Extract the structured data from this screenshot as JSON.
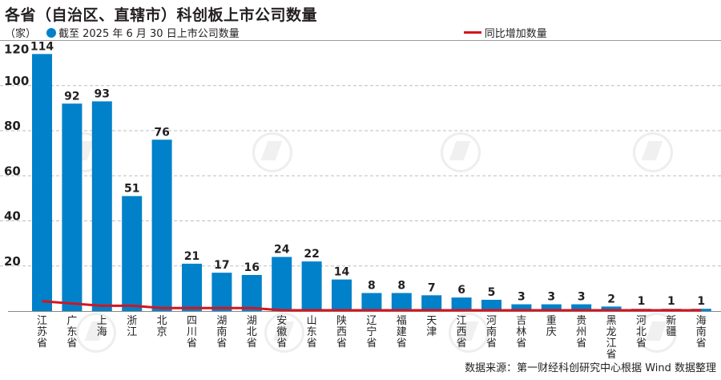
{
  "title": "各省（自治区、直辖市）科创板上市公司数量",
  "unit": "（家）",
  "legend": {
    "bar_label": "截至 2025 年 6 月 30 日上市公司数量",
    "line_label": "同比增加数量"
  },
  "source": "数据来源：第一财经科创研究中心根据 Wind 数据整理",
  "colors": {
    "bar": "#0081c9",
    "line": "#d6131f",
    "grid": "#bdbdbd"
  },
  "chart_data": {
    "type": "bar",
    "title": "各省（自治区、直辖市）科创板上市公司数量",
    "xlabel": "",
    "ylabel": "（家）",
    "ylim": [
      0,
      120
    ],
    "yticks": [
      20,
      40,
      60,
      80,
      100,
      120
    ],
    "grid": true,
    "legend_position": "top",
    "categories": [
      "江苏省",
      "广东省",
      "上海",
      "浙江",
      "北京",
      "四川省",
      "湖南省",
      "湖北省",
      "安徽省",
      "山东省",
      "陕西省",
      "辽宁省",
      "福建省",
      "天津",
      "江西省",
      "河南省",
      "吉林省",
      "重庆",
      "贵州省",
      "黑龙江省",
      "河北省",
      "新疆",
      "海南省"
    ],
    "series": [
      {
        "name": "截至 2025 年 6 月 30 日上市公司数量",
        "type": "bar",
        "values": [
          114,
          92,
          93,
          51,
          76,
          21,
          17,
          16,
          24,
          22,
          14,
          8,
          8,
          7,
          6,
          5,
          3,
          3,
          3,
          2,
          1,
          1,
          1
        ]
      },
      {
        "name": "同比增加数量",
        "type": "line",
        "values": [
          4,
          3,
          2,
          2,
          1,
          1,
          1,
          1,
          0,
          0,
          0,
          0,
          0,
          0,
          0,
          0,
          0,
          0,
          0,
          0,
          0,
          0,
          0
        ]
      }
    ]
  }
}
